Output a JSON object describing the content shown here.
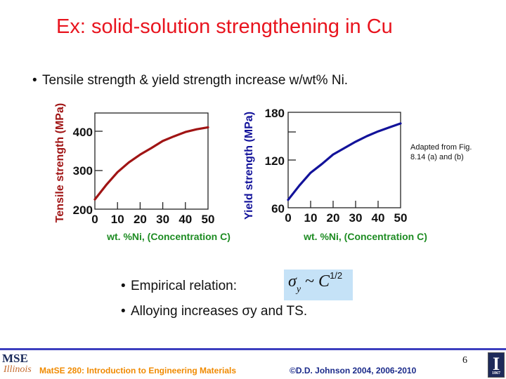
{
  "slide": {
    "title": "Ex:  solid-solution strengthening in Cu",
    "bullets": [
      "Tensile strength & yield strength increase w/wt% Ni.",
      "Empirical relation:",
      "Alloying increases σy and TS."
    ],
    "bullet_char": "•",
    "formula": {
      "sigma": "σ",
      "sub": "y",
      "tilde": " ~ ",
      "C": "C",
      "sup": "1/2"
    },
    "credit": [
      "Adapted from Fig.",
      "8.14 (a) and (b)"
    ],
    "colors": {
      "title": "#e8141e",
      "tensile_curve": "#a01414",
      "yield_curve": "#12129a",
      "xlabel": "#1e8c23",
      "formula_bg": "#c5e2f7",
      "footer_rule": "#3d3fbf"
    }
  },
  "footer": {
    "course": "MatSE 280: Introduction to Engineering Materials",
    "copyright": "©D.D. Johnson 2004, 2006-2010",
    "page_number": "6",
    "logo_left_top": "MSE",
    "logo_left_bottom": "Illinois",
    "logo_right_letter": "I",
    "logo_right_year": "1867"
  },
  "chart_data": [
    {
      "type": "line",
      "title": "",
      "xlabel": "wt. %Ni, (Concentration C)",
      "ylabel": "Tensile strength (MPa)",
      "x_ticks": [
        "0",
        "10",
        "20",
        "30",
        "40",
        "50"
      ],
      "y_ticks": [
        "200",
        "300",
        "400"
      ],
      "xlim": [
        0,
        50
      ],
      "ylim": [
        200,
        450
      ],
      "grid": false,
      "series": [
        {
          "name": "Tensile strength",
          "color": "#a01414",
          "x": [
            0,
            5,
            10,
            15,
            20,
            25,
            30,
            35,
            40,
            45,
            50
          ],
          "values": [
            225,
            262,
            295,
            320,
            340,
            357,
            375,
            387,
            398,
            405,
            410
          ]
        }
      ]
    },
    {
      "type": "line",
      "title": "",
      "xlabel": "wt. %Ni, (Concentration C)",
      "ylabel": "Yield strength (MPa)",
      "x_ticks": [
        "0",
        "10",
        "20",
        "30",
        "40",
        "50"
      ],
      "y_ticks": [
        "60",
        "120",
        "180"
      ],
      "xlim": [
        0,
        50
      ],
      "ylim": [
        60,
        180
      ],
      "grid": false,
      "series": [
        {
          "name": "Yield strength",
          "color": "#12129a",
          "x": [
            0,
            5,
            10,
            15,
            20,
            25,
            30,
            35,
            40,
            45,
            50
          ],
          "values": [
            70,
            88,
            104,
            115,
            127,
            135,
            143,
            150,
            156,
            161,
            166
          ]
        }
      ]
    }
  ]
}
